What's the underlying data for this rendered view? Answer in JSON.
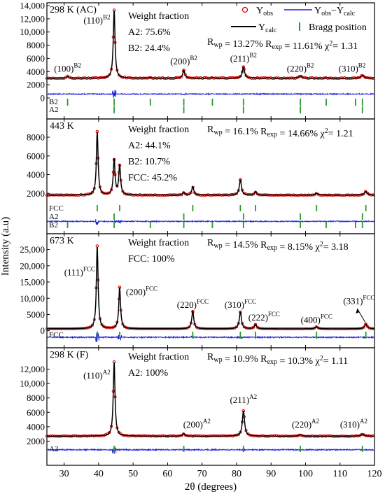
{
  "figure": {
    "xlabel": "2θ (degrees)",
    "ylabel": "Intensity (a.u)",
    "xticks": [
      30,
      40,
      50,
      60,
      70,
      80,
      90,
      100,
      110,
      120
    ],
    "xlim": [
      25,
      120
    ]
  },
  "legend": {
    "obs": "Y",
    "obs_sub": "obs",
    "diff": "Y",
    "diff_sub_a": "obs",
    "diff_mid": "−Y",
    "diff_sub_b": "calc",
    "calc": "Y",
    "calc_sub": "calc",
    "bragg": "Bragg position"
  },
  "colors": {
    "obs": "#d40000",
    "calc": "#000000",
    "diff": "#1f1fdd",
    "bragg": "#2a9a2a"
  },
  "chart_data": [
    {
      "type": "line",
      "panel_label": "298 K (AC)",
      "ylim": [
        0,
        14000
      ],
      "yticks": [
        0,
        2000,
        4000,
        6000,
        8000,
        10000,
        12000,
        14000
      ],
      "ytick_labels": [
        "0",
        "2000",
        "4000",
        "6000",
        "8000",
        "10,000",
        "12,000",
        "14,000"
      ],
      "background": 3000,
      "diff_baseline": 600,
      "peaks": [
        [
          31.0,
          280
        ],
        [
          44.5,
          10300
        ],
        [
          55.0,
          120
        ],
        [
          64.7,
          1200
        ],
        [
          73.0,
          80
        ],
        [
          82.0,
          1700
        ],
        [
          89.0,
          60
        ],
        [
          98.5,
          380
        ],
        [
          106.0,
          50
        ],
        [
          116.5,
          450
        ]
      ],
      "annotations": [
        {
          "text": "(100)",
          "sup": "B2",
          "x": 31.0,
          "y": 4000
        },
        {
          "text": "(110)",
          "sup": "B2",
          "x": 39.5,
          "y": 11300
        },
        {
          "text": "(200)",
          "sup": "B2",
          "x": 64.7,
          "y": 5100
        },
        {
          "text": "(211)",
          "sup": "B2",
          "x": 82.0,
          "y": 5500
        },
        {
          "text": "(220)",
          "sup": "B2",
          "x": 98.5,
          "y": 4000
        },
        {
          "text": "(310)",
          "sup": "B2",
          "x": 113.5,
          "y": 4000
        }
      ],
      "info": [
        "Weight fraction",
        "A2: 75.6%",
        "B2: 24.4%"
      ],
      "stats": {
        "rwp": "13.27%",
        "rexp": "11.61%",
        "chi2": "1.31"
      },
      "bragg_rows": [
        {
          "label": "B2",
          "positions": [
            31.0,
            44.5,
            55.0,
            64.7,
            73.0,
            82.0,
            98.5,
            106.0,
            114.5,
            116.5
          ]
        },
        {
          "label": "A2",
          "positions": [
            44.5,
            64.7,
            82.0,
            98.5,
            116.5
          ]
        }
      ]
    },
    {
      "type": "line",
      "panel_label": "443 K",
      "ylim": [
        0,
        9500
      ],
      "yticks": [
        2000,
        4000,
        6000,
        8000
      ],
      "ytick_labels": [
        "2000",
        "4000",
        "6000",
        "8000"
      ],
      "background": 1800,
      "diff_baseline": -1000,
      "peaks": [
        [
          39.6,
          6800
        ],
        [
          44.5,
          3800
        ],
        [
          46.1,
          3200
        ],
        [
          64.7,
          300
        ],
        [
          67.3,
          900
        ],
        [
          81.1,
          1600
        ],
        [
          85.5,
          350
        ],
        [
          103.2,
          200
        ],
        [
          117.5,
          400
        ]
      ],
      "annotations": [],
      "info": [
        "Weight fraction",
        "A2: 44.1%",
        "B2: 10.7%",
        "FCC: 45.2%"
      ],
      "stats": {
        "rwp": "16.1%",
        "rexp": "14.66%",
        "chi2": "1.21"
      },
      "bragg_rows": [
        {
          "label": "FCC",
          "positions": [
            39.6,
            46.1,
            67.3,
            81.1,
            85.5,
            103.2,
            117.5
          ]
        },
        {
          "label": "A2",
          "positions": [
            44.5,
            64.7,
            82.0,
            98.5,
            116.5
          ]
        },
        {
          "label": "B2",
          "positions": [
            31.0,
            44.5,
            55.0,
            64.7,
            73.0,
            82.0,
            98.5,
            106.0,
            114.5,
            116.5
          ]
        }
      ]
    },
    {
      "type": "line",
      "panel_label": "673 K",
      "ylim": [
        -2000,
        29000
      ],
      "yticks": [
        0,
        5000,
        10000,
        15000,
        20000,
        25000
      ],
      "ytick_labels": [
        "0",
        "5000",
        "10,000",
        "15,000",
        "20,000",
        "25,000"
      ],
      "background": 600,
      "diff_baseline": -2000,
      "peaks": [
        [
          39.6,
          25500
        ],
        [
          46.1,
          12800
        ],
        [
          67.3,
          5300
        ],
        [
          81.1,
          5100
        ],
        [
          85.5,
          1300
        ],
        [
          103.2,
          650
        ],
        [
          117.5,
          1400
        ]
      ],
      "annotations": [
        {
          "text": "(111)",
          "sup": "FCC",
          "x": 34.5,
          "y": 17000
        },
        {
          "text": "(200)",
          "sup": "FCC",
          "x": 52.5,
          "y": 11000
        },
        {
          "text": "(220)",
          "sup": "FCC",
          "x": 67.3,
          "y": 7000
        },
        {
          "text": "(310)",
          "sup": "FCC",
          "x": 81.1,
          "y": 7000
        },
        {
          "text": "(222)",
          "sup": "FCC",
          "x": 88.0,
          "y": 3200
        },
        {
          "text": "(400)",
          "sup": "FCC",
          "x": 103.2,
          "y": 2400
        },
        {
          "text": "(331)",
          "sup": "FCC",
          "x": 115.5,
          "y": 8200
        }
      ],
      "info": [
        "Weight fraction",
        "FCC: 100%"
      ],
      "stats": {
        "rwp": "14.5%",
        "rexp": "8.15%",
        "chi2": "3.18"
      },
      "bragg_rows": [
        {
          "label": "FCC",
          "positions": [
            39.6,
            46.1,
            67.3,
            81.1,
            85.5,
            103.2,
            117.5
          ]
        }
      ]
    },
    {
      "type": "line",
      "panel_label": "298 K (F)",
      "ylim": [
        0,
        14000
      ],
      "yticks": [
        2000,
        4000,
        6000,
        8000,
        10000,
        12000
      ],
      "ytick_labels": [
        "2000",
        "4000",
        "6000",
        "8000",
        "10,000",
        "12,000"
      ],
      "background": 2700,
      "diff_baseline": 800,
      "peaks": [
        [
          44.5,
          10300
        ],
        [
          64.7,
          350
        ],
        [
          82.0,
          3500
        ],
        [
          98.5,
          200
        ],
        [
          116.5,
          300
        ]
      ],
      "annotations": [
        {
          "text": "(110)",
          "sup": "A2",
          "x": 39.5,
          "y": 10700
        },
        {
          "text": "(200)",
          "sup": "A2",
          "x": 68.5,
          "y": 3900
        },
        {
          "text": "(211)",
          "sup": "A2",
          "x": 82.0,
          "y": 7300
        },
        {
          "text": "(220)",
          "sup": "A2",
          "x": 100.0,
          "y": 3900
        },
        {
          "text": "(310)",
          "sup": "A2",
          "x": 114.0,
          "y": 3900
        }
      ],
      "info": [
        "Weight fraction",
        "A2: 100%"
      ],
      "stats": {
        "rwp": "10.9%",
        "rexp": "10.3%",
        "chi2": "1.11"
      },
      "bragg_rows": [
        {
          "label": "A2",
          "positions": [
            44.5,
            64.7,
            82.0,
            98.5,
            116.5
          ]
        }
      ]
    }
  ]
}
